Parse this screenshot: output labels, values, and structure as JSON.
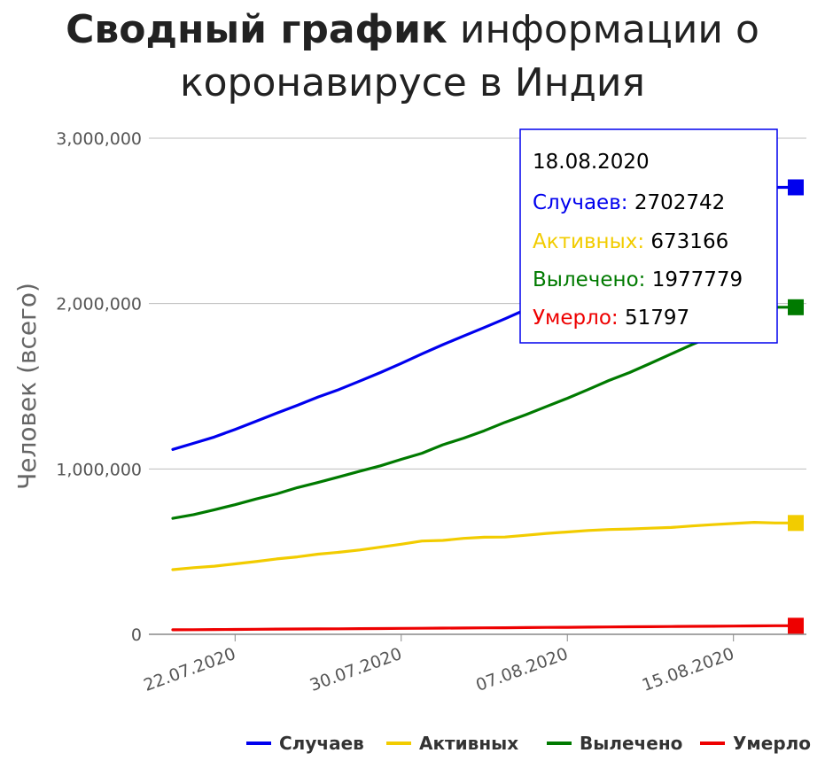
{
  "title": {
    "bold": "Сводный график",
    "regular_line1": " информации о",
    "line2": "коронавирусе в Индия"
  },
  "tooltip": {
    "date": "18.08.2020",
    "rows": [
      {
        "label": "Случаев:",
        "value": "2702742",
        "color": "#0000ee"
      },
      {
        "label": "Активных:",
        "value": "673166",
        "color": "#f2cc00"
      },
      {
        "label": "Вылечено:",
        "value": "1977779",
        "color": "#007a00"
      },
      {
        "label": "Умерло:",
        "value": "51797",
        "color": "#ee0000"
      }
    ],
    "border_color": "#0000ee"
  },
  "chart_data": {
    "type": "line",
    "title": "Сводный график информации о коронавирусе в Индия",
    "ylabel": "Человек (всего)",
    "xlabel": "",
    "ylim": [
      0,
      3000000
    ],
    "yticks": [
      0,
      1000000,
      2000000,
      3000000
    ],
    "ytick_labels": [
      "0",
      "1,000,000",
      "2,000,000",
      "3,000,000"
    ],
    "xticks": [
      "22.07.2020",
      "30.07.2020",
      "07.08.2020",
      "15.08.2020"
    ],
    "x": [
      "19.07.2020",
      "20.07.2020",
      "21.07.2020",
      "22.07.2020",
      "23.07.2020",
      "24.07.2020",
      "25.07.2020",
      "26.07.2020",
      "27.07.2020",
      "28.07.2020",
      "29.07.2020",
      "30.07.2020",
      "31.07.2020",
      "01.08.2020",
      "02.08.2020",
      "03.08.2020",
      "04.08.2020",
      "05.08.2020",
      "06.08.2020",
      "07.08.2020",
      "08.08.2020",
      "09.08.2020",
      "10.08.2020",
      "11.08.2020",
      "12.08.2020",
      "13.08.2020",
      "14.08.2020",
      "15.08.2020",
      "16.08.2020",
      "17.08.2020",
      "18.08.2020"
    ],
    "grid": true,
    "legend": "bottom",
    "series": [
      {
        "name": "Случаев",
        "color": "#0000ee",
        "values": [
          1118000,
          1155000,
          1193000,
          1239000,
          1288000,
          1337000,
          1385000,
          1435000,
          1480000,
          1531000,
          1583000,
          1638000,
          1696000,
          1751000,
          1804000,
          1855000,
          1908000,
          1964000,
          2027000,
          2088000,
          2153000,
          2215000,
          2268000,
          2329000,
          2396000,
          2461000,
          2525000,
          2590000,
          2647000,
          2702742,
          2702742
        ]
      },
      {
        "name": "Активных",
        "color": "#f2cc00",
        "values": [
          391000,
          403000,
          412000,
          426000,
          440000,
          456000,
          468000,
          485000,
          496000,
          510000,
          527000,
          545000,
          564000,
          568000,
          580000,
          587000,
          588000,
          599000,
          610000,
          619000,
          628000,
          634000,
          637000,
          642000,
          646000,
          655000,
          663000,
          670000,
          677000,
          673166,
          673166
        ]
      },
      {
        "name": "Вылечено",
        "color": "#007a00",
        "values": [
          701000,
          724000,
          753000,
          784000,
          818000,
          849000,
          887000,
          918000,
          952000,
          986000,
          1019000,
          1058000,
          1095000,
          1146000,
          1186000,
          1231000,
          1282000,
          1328000,
          1378000,
          1427000,
          1480000,
          1535000,
          1583000,
          1639000,
          1695000,
          1752000,
          1805000,
          1864000,
          1919000,
          1977779,
          1977779
        ]
      },
      {
        "name": "Умерло",
        "color": "#ee0000",
        "values": [
          27500,
          28100,
          28800,
          29600,
          30600,
          31400,
          32100,
          32800,
          33400,
          34200,
          35000,
          35700,
          36500,
          37400,
          38100,
          38900,
          39800,
          40700,
          41600,
          42500,
          43400,
          44400,
          45300,
          46100,
          47100,
          48000,
          49000,
          50000,
          50900,
          51797,
          51797
        ]
      }
    ]
  }
}
